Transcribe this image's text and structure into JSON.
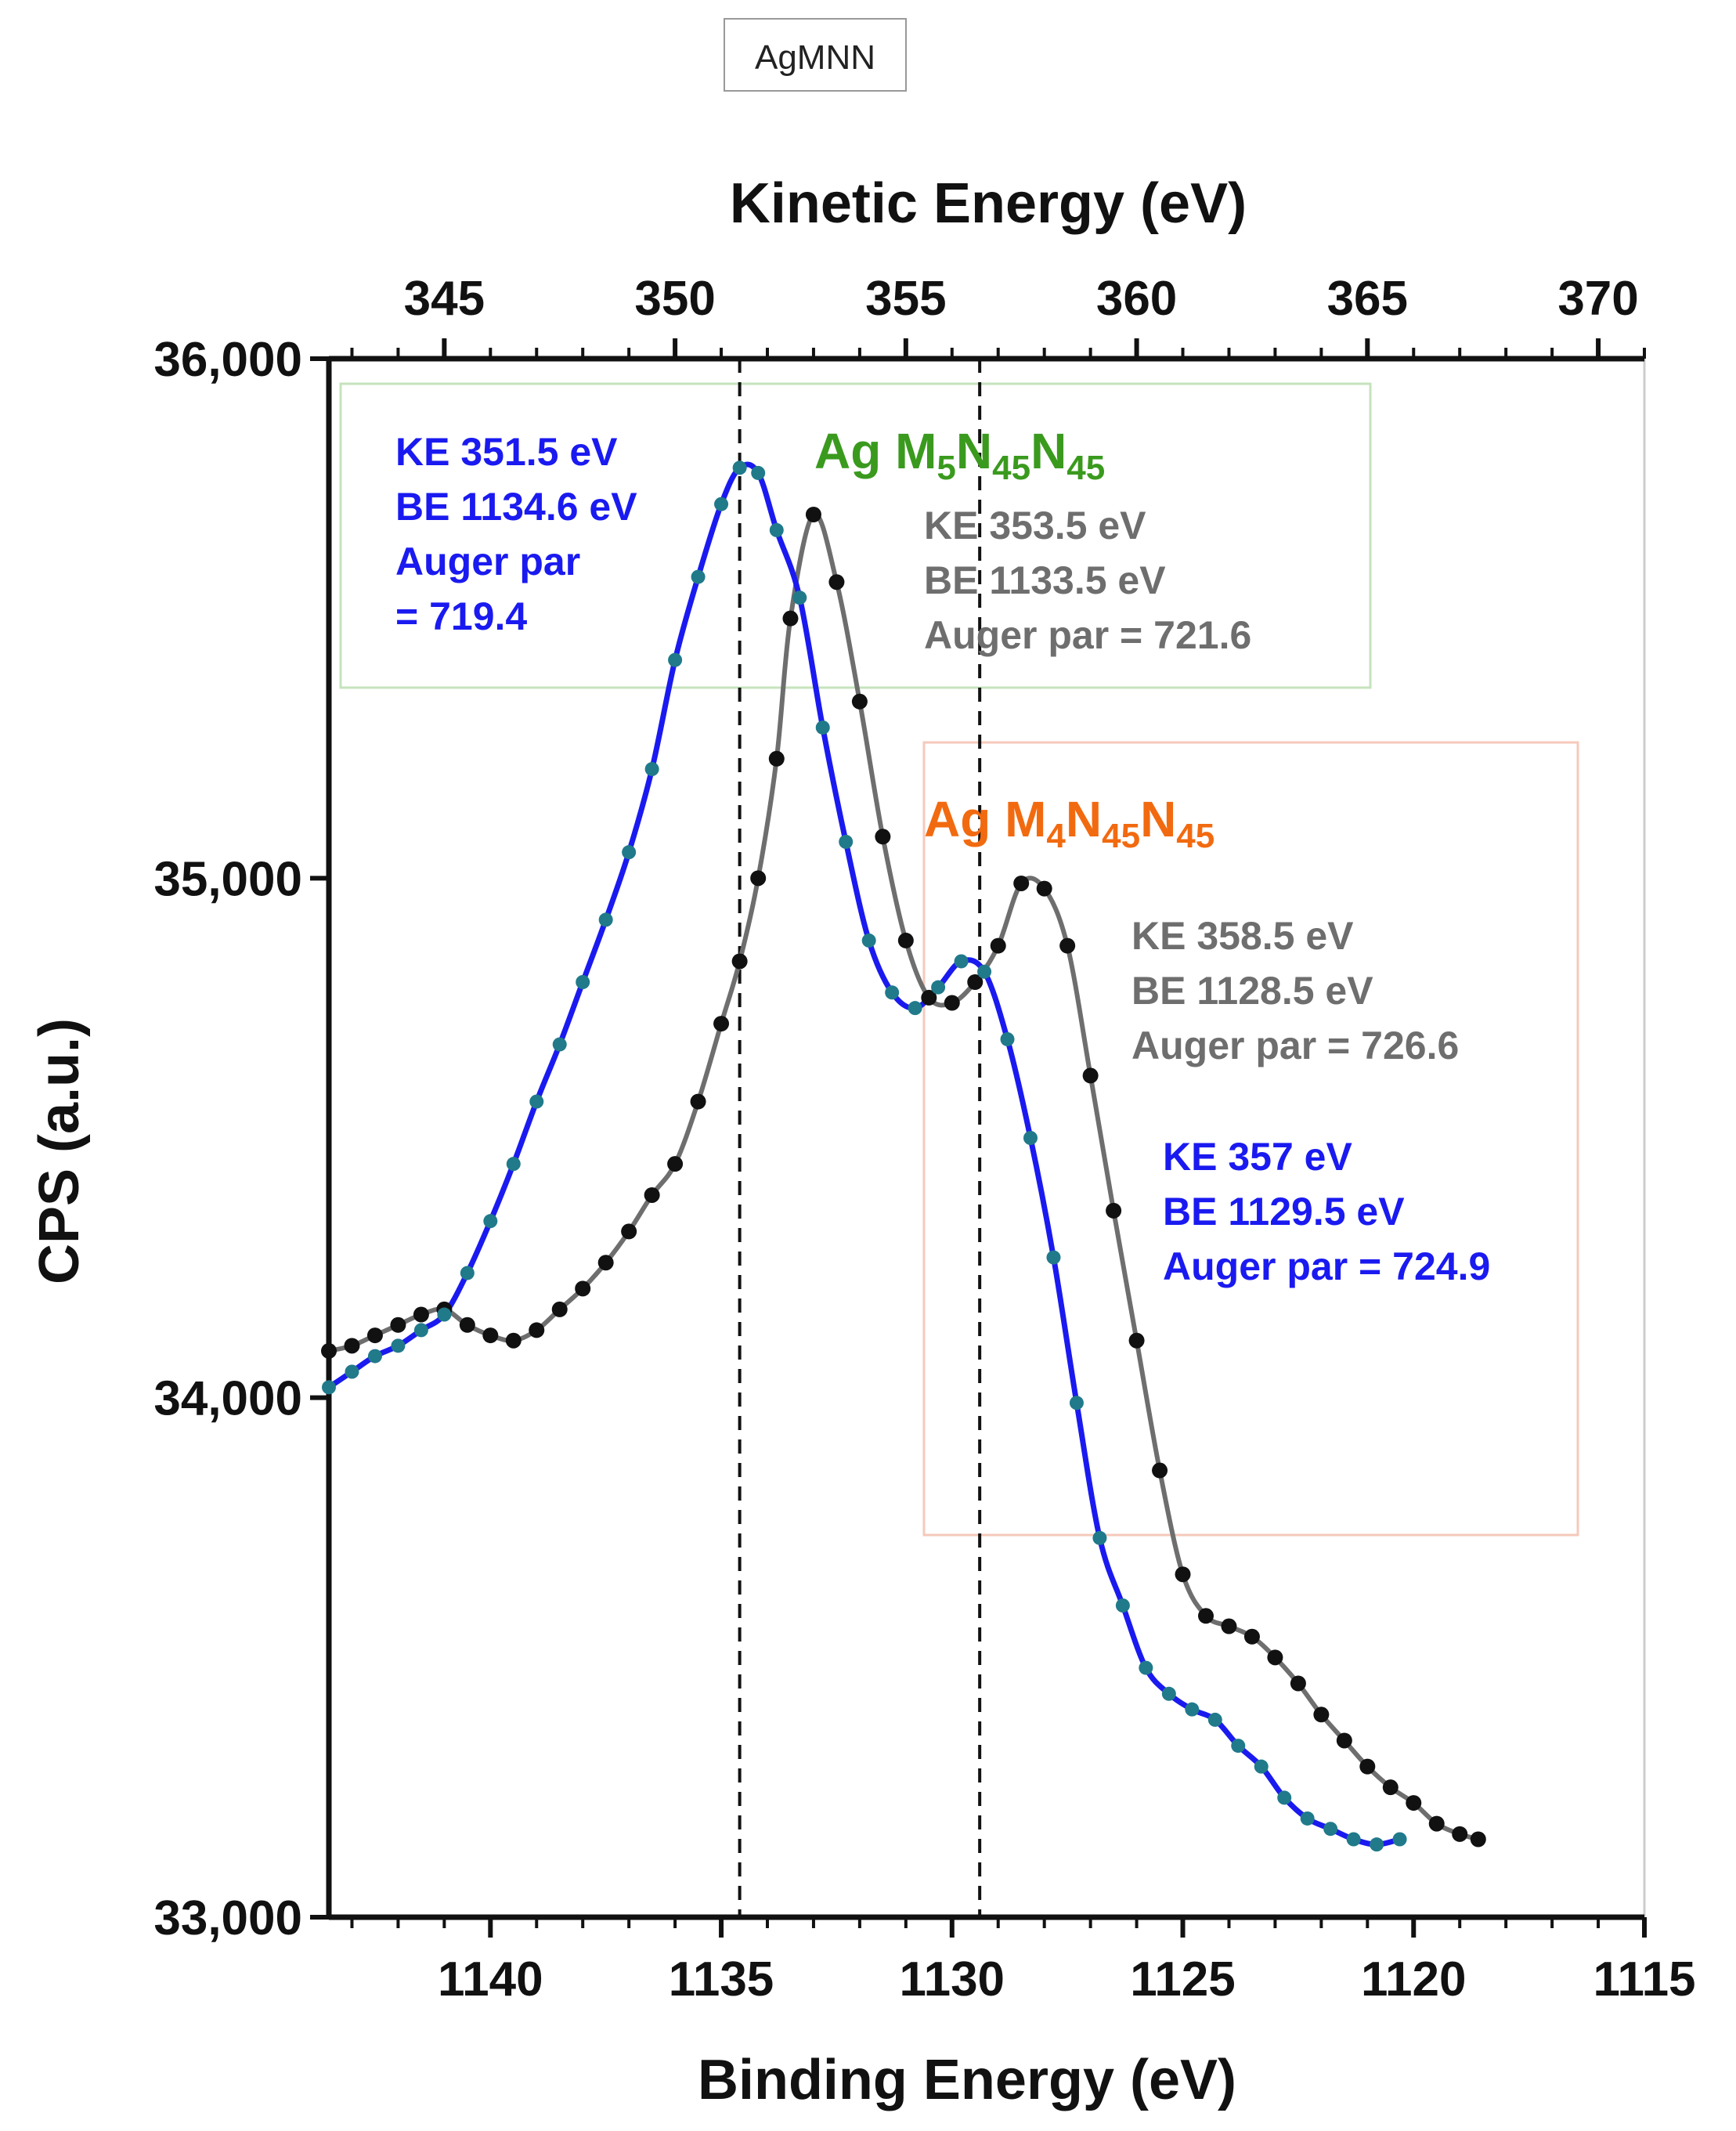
{
  "chart_data": {
    "type": "scatter",
    "tag": "AgMNN",
    "xlabel": "Binding Energy (eV)",
    "x2label": "Kinetic Energy (eV)",
    "ylabel": "CPS (a.u.)",
    "xlim": [
      1143.5,
      1115
    ],
    "x2lim": [
      342.5,
      371
    ],
    "ylim": [
      33000,
      36000
    ],
    "x_ticks": [
      "1140",
      "1135",
      "1130",
      "1125",
      "1120",
      "1115"
    ],
    "x_tick_values": [
      1140,
      1135,
      1130,
      1125,
      1120,
      1115
    ],
    "x2_ticks": [
      "345",
      "350",
      "355",
      "360",
      "365",
      "370"
    ],
    "x2_tick_values": [
      345,
      350,
      355,
      360,
      365,
      370
    ],
    "y_ticks": [
      "33,000",
      "34,000",
      "35,000",
      "36,000"
    ],
    "y_tick_values": [
      33000,
      34000,
      35000,
      36000
    ],
    "vlines_be": [
      1134.6,
      1129.4
    ],
    "peak_labels": {
      "m5": {
        "prefix": "Ag M",
        "sub1": "5",
        "mid": "N",
        "sub2": "45",
        "mid2": "N",
        "sub3": "45",
        "color": "#3a9a1e"
      },
      "m4": {
        "prefix": "Ag M",
        "sub1": "4",
        "mid": "N",
        "sub2": "45",
        "mid2": "N",
        "sub3": "45",
        "color": "#f26a10"
      }
    },
    "annotations": {
      "blue_1": [
        "KE 351.5 eV",
        "BE 1134.6 eV",
        "Auger par",
        "= 719.4"
      ],
      "gray_1": [
        "KE 353.5 eV",
        "BE 1133.5 eV",
        "Auger par = 721.6"
      ],
      "gray_2": [
        "KE 358.5 eV",
        "BE 1128.5 eV",
        "Auger par = 726.6"
      ],
      "blue_2": [
        "KE 357 eV",
        "BE 1129.5 eV",
        "Auger par = 724.9"
      ]
    },
    "colors": {
      "blue": "#1a1af0",
      "gray": "#6e6e6e",
      "black_marker": "#111111",
      "teal_marker": "#207a8a",
      "green_box": "#c5e3bd",
      "orange_box": "#f6c9bb"
    },
    "series": [
      {
        "name": "blue",
        "x": [
          1143.5,
          1143.0,
          1142.5,
          1142.0,
          1141.5,
          1141.0,
          1140.5,
          1140.0,
          1139.5,
          1139.0,
          1138.5,
          1138.0,
          1137.5,
          1137.0,
          1136.5,
          1136.0,
          1135.5,
          1135.0,
          1134.6,
          1134.2,
          1133.8,
          1133.3,
          1132.8,
          1132.3,
          1131.8,
          1131.3,
          1130.8,
          1130.3,
          1129.8,
          1129.3,
          1128.8,
          1128.3,
          1127.8,
          1127.3,
          1126.8,
          1126.3,
          1125.8,
          1125.3,
          1124.8,
          1124.3,
          1123.8,
          1123.3,
          1122.8,
          1122.3,
          1121.8,
          1121.3,
          1120.8,
          1120.3
        ],
        "y": [
          34020,
          34050,
          34080,
          34100,
          34130,
          34160,
          34240,
          34340,
          34450,
          34570,
          34680,
          34800,
          34920,
          35050,
          35210,
          35420,
          35580,
          35720,
          35790,
          35780,
          35670,
          35540,
          35290,
          35070,
          34880,
          34780,
          34750,
          34790,
          34840,
          34820,
          34690,
          34500,
          34270,
          33990,
          33730,
          33600,
          33480,
          33430,
          33400,
          33380,
          33330,
          33290,
          33230,
          33190,
          33170,
          33150,
          33140,
          33150
        ]
      },
      {
        "name": "gray",
        "x": [
          1143.5,
          1143.0,
          1142.5,
          1142.0,
          1141.5,
          1141.0,
          1140.5,
          1140.0,
          1139.5,
          1139.0,
          1138.5,
          1138.0,
          1137.5,
          1137.0,
          1136.5,
          1136.0,
          1135.5,
          1135.0,
          1134.6,
          1134.2,
          1133.8,
          1133.5,
          1133.0,
          1132.5,
          1132.0,
          1131.5,
          1131.0,
          1130.5,
          1130.0,
          1129.5,
          1129.0,
          1128.5,
          1128.0,
          1127.5,
          1127.0,
          1126.5,
          1126.0,
          1125.5,
          1125.0,
          1124.5,
          1124.0,
          1123.5,
          1123.0,
          1122.5,
          1122.0,
          1121.5,
          1121.0,
          1120.5,
          1120.0,
          1119.5,
          1119.0,
          1118.6
        ],
        "y": [
          34090,
          34100,
          34120,
          34140,
          34160,
          34170,
          34140,
          34120,
          34110,
          34130,
          34170,
          34210,
          34260,
          34320,
          34390,
          34450,
          34570,
          34720,
          34840,
          35000,
          35230,
          35500,
          35700,
          35570,
          35340,
          35080,
          34880,
          34770,
          34760,
          34800,
          34870,
          34990,
          34980,
          34870,
          34620,
          34360,
          34110,
          33860,
          33660,
          33580,
          33560,
          33540,
          33500,
          33450,
          33390,
          33340,
          33290,
          33250,
          33220,
          33180,
          33160,
          33150
        ]
      }
    ]
  }
}
